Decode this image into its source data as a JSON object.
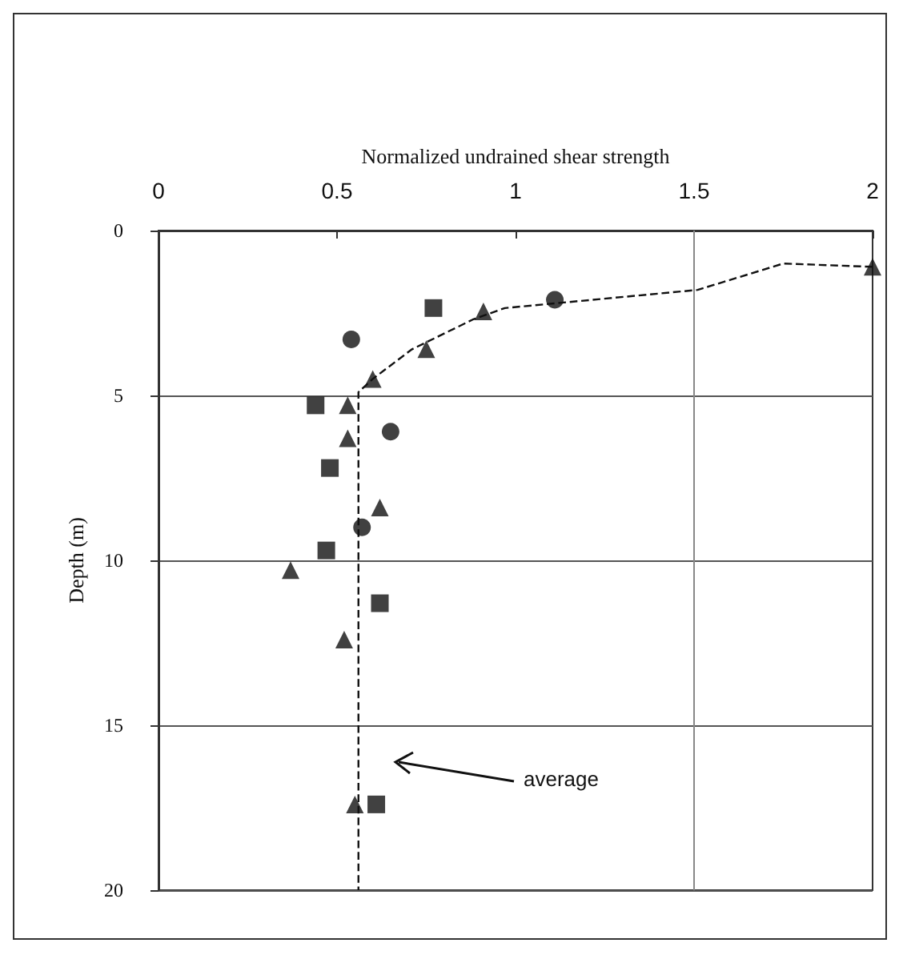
{
  "chart_data": {
    "type": "scatter",
    "xlabel": "Normalized undrained shear strength",
    "ylabel": "Depth (m)",
    "xlim": [
      0,
      2
    ],
    "xticks": [
      0,
      0.5,
      1,
      1.5,
      2
    ],
    "ylim": [
      20,
      0
    ],
    "yticks": [
      0,
      5,
      10,
      15,
      20
    ],
    "grid": "y",
    "ref_lines": [
      {
        "axis": "x",
        "value": 1.5,
        "label": null
      }
    ],
    "annotations": [
      "average"
    ],
    "series": [
      {
        "color": "#111111",
        "marker": "triangle",
        "x": [
          2.0,
          0.91,
          0.75,
          0.6,
          0.53,
          0.53,
          0.62,
          0.37,
          0.52,
          0.55
        ],
        "values": [
          1.1,
          2.45,
          3.6,
          4.5,
          5.3,
          6.3,
          8.4,
          10.3,
          12.4,
          17.4
        ]
      },
      {
        "color": "#111111",
        "marker": "circle",
        "x": [
          1.11,
          0.54,
          0.65,
          0.57
        ],
        "values": [
          2.1,
          3.3,
          6.1,
          9.0
        ]
      },
      {
        "color": "#111111",
        "marker": "square",
        "x": [
          0.77,
          0.44,
          0.48,
          0.47,
          0.62,
          0.61
        ],
        "values": [
          2.35,
          5.3,
          7.2,
          9.7,
          11.3,
          17.4
        ]
      },
      {
        "type": "line",
        "color": "#111111",
        "marker": "none",
        "line_style": "dashed",
        "x": [
          2.0,
          1.75,
          1.51,
          0.97,
          0.88,
          0.71,
          0.6,
          0.56,
          0.56,
          0.56
        ],
        "values": [
          1.1,
          1.0,
          1.8,
          2.35,
          2.7,
          3.6,
          4.5,
          4.9,
          5.5,
          20
        ]
      }
    ]
  }
}
